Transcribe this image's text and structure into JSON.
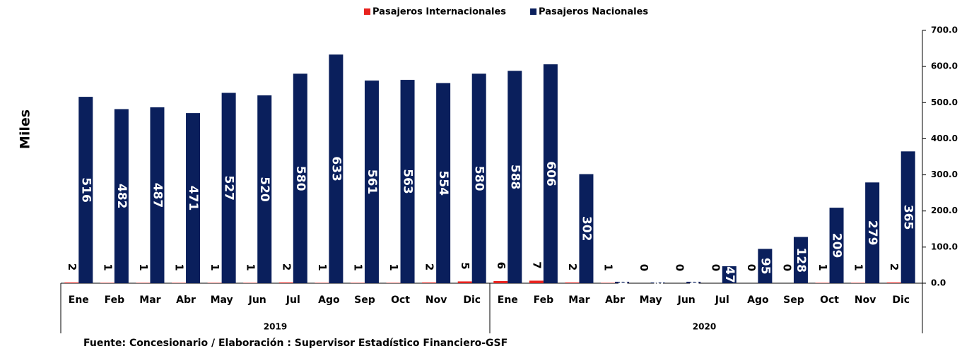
{
  "chart_data": {
    "type": "bar",
    "y_label": "Miles",
    "source": "Fuente: Concesionario / Elaboración : Supervisor Estadístico Financiero-GSF",
    "categories": [
      "Ene",
      "Feb",
      "Mar",
      "Abr",
      "May",
      "Jun",
      "Jul",
      "Ago",
      "Sep",
      "Oct",
      "Nov",
      "Dic",
      "Ene",
      "Feb",
      "Mar",
      "Abr",
      "May",
      "Jun",
      "Jul",
      "Ago",
      "Sep",
      "Oct",
      "Nov",
      "Dic"
    ],
    "groups": [
      "2019",
      "2020"
    ],
    "series": [
      {
        "name": "Pasajeros Internacionales",
        "color": "#e8221e",
        "values": [
          2,
          1,
          1,
          1,
          1,
          1,
          2,
          1,
          1,
          1,
          2,
          5,
          6,
          7,
          2,
          1,
          0,
          0,
          0,
          0,
          0,
          1,
          1,
          2
        ]
      },
      {
        "name": "Pasajeros Nacionales",
        "color": "#0a1f5c",
        "values": [
          516,
          482,
          487,
          471,
          527,
          520,
          580,
          633,
          561,
          563,
          554,
          580,
          588,
          606,
          302,
          4,
          2,
          4,
          47,
          95,
          128,
          209,
          279,
          365
        ]
      }
    ],
    "ylim": [
      0,
      700
    ],
    "yticks": [
      {
        "value": 0,
        "label": "0.0"
      },
      {
        "value": 100,
        "label": "100.0"
      },
      {
        "value": 200,
        "label": "200.0"
      },
      {
        "value": 300,
        "label": "300.0"
      },
      {
        "value": 400,
        "label": "400.0"
      },
      {
        "value": 500,
        "label": "500.0"
      },
      {
        "value": 600,
        "label": "600.0"
      },
      {
        "value": 700,
        "label": "700.0"
      }
    ],
    "legend": "top"
  }
}
